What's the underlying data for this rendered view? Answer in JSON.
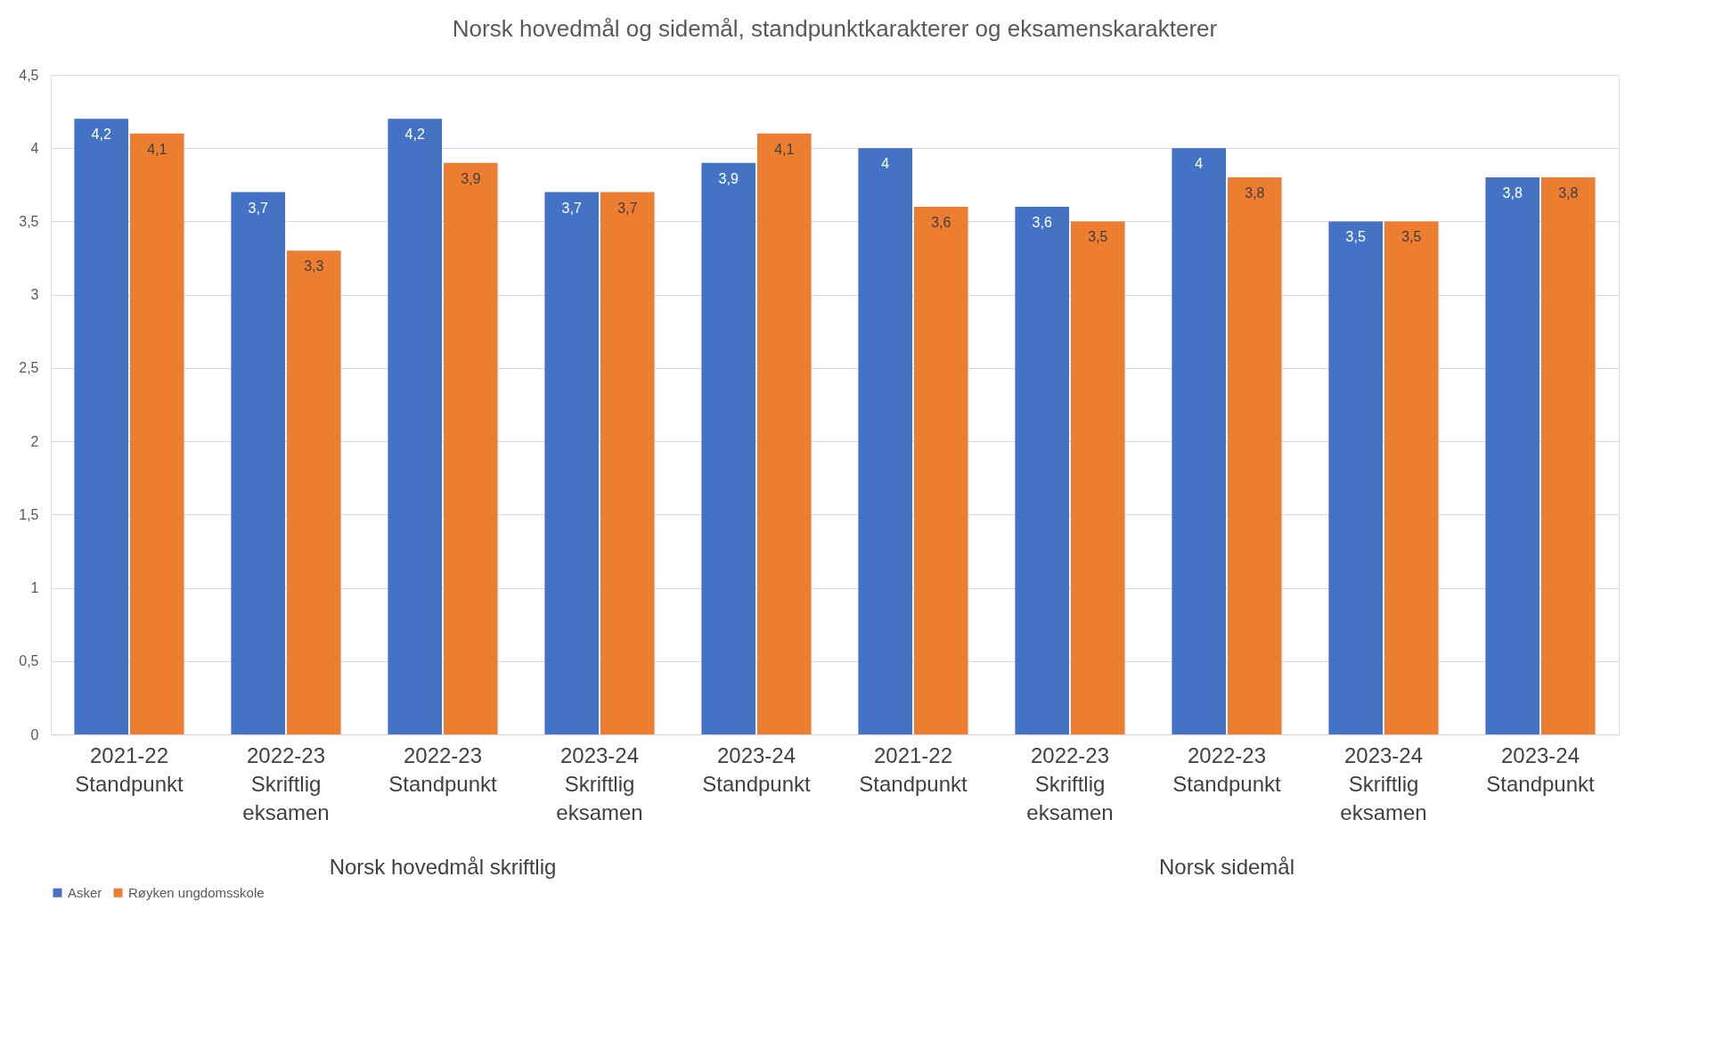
{
  "chart_data": {
    "type": "bar",
    "title": "Norsk hovedmål og sidemål, standpunktkarakterer og eksamenskarakterer",
    "categories": [
      "2021-22 Standpunkt",
      "2022-23 Skriftlig eksamen",
      "2022-23 Standpunkt",
      "2023-24 Skriftlig eksamen",
      "2023-24 Standpunkt",
      "2021-22 Standpunkt",
      "2022-23 Skriftlig eksamen",
      "2022-23 Standpunkt",
      "2023-24 Skriftlig eksamen",
      "2023-24 Standpunkt"
    ],
    "series": [
      {
        "name": "Asker",
        "color": "#4472c4",
        "values": [
          4.2,
          3.7,
          4.2,
          3.7,
          3.9,
          4,
          3.6,
          4,
          3.5,
          3.8
        ],
        "value_labels": [
          "4,2",
          "3,7",
          "4,2",
          "3,7",
          "3,9",
          "4",
          "3,6",
          "4",
          "3,5",
          "3,8"
        ]
      },
      {
        "name": "Røyken ungdomsskole",
        "color": "#ed7d31",
        "values": [
          4.1,
          3.3,
          3.9,
          3.7,
          4.1,
          3.6,
          3.5,
          3.8,
          3.5,
          3.8
        ],
        "value_labels": [
          "4,1",
          "3,3",
          "3,9",
          "3,7",
          "4,1",
          "3,6",
          "3,5",
          "3,8",
          "3,5",
          "3,8"
        ]
      }
    ],
    "annotations": [
      "Norsk hovedmål skriftlig",
      "Norsk sidemål"
    ],
    "ylim": [
      0,
      4.5
    ],
    "yticks": [
      0,
      {
        "value": 0.5,
        "label": "0,5"
      },
      1,
      {
        "value": 1.5,
        "label": "1,5"
      },
      2,
      {
        "value": 2.5,
        "label": "2,5"
      },
      3,
      {
        "value": 3.5,
        "label": "3,5"
      },
      4,
      {
        "value": 4.5,
        "label": "4,5"
      }
    ],
    "grid": "y",
    "legend": "bottom"
  }
}
